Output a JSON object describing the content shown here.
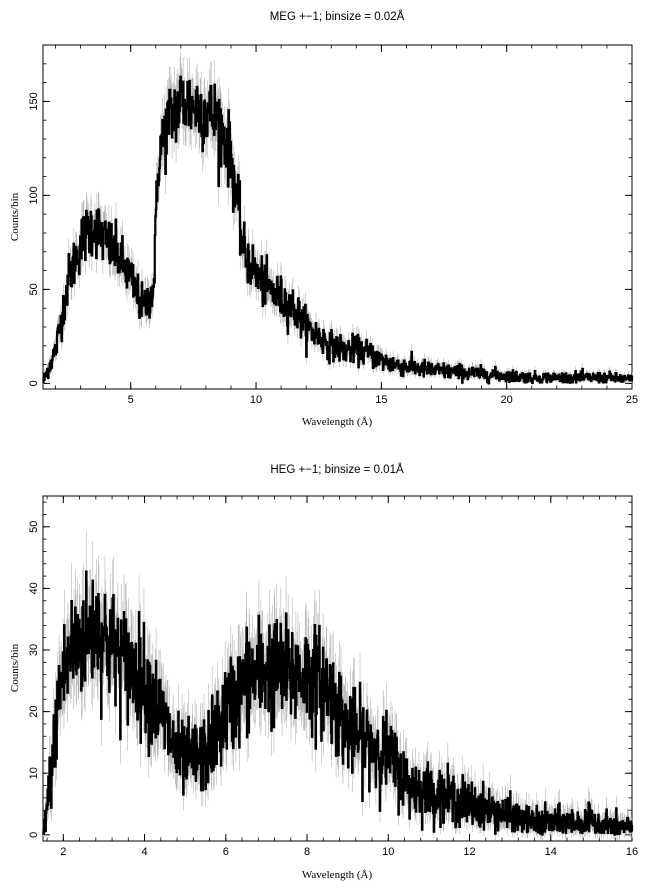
{
  "chart_data": [
    {
      "type": "line",
      "title": "MEG +−1; binsize = 0.02Å",
      "xlabel": "Wavelength (Å)",
      "ylabel": "Counts/bin",
      "xlim": [
        1.5,
        25
      ],
      "ylim": [
        -3,
        180
      ],
      "xticks": [
        5,
        10,
        15,
        20,
        25
      ],
      "yticks": [
        0,
        50,
        100,
        150
      ],
      "grid": false,
      "series": [
        {
          "style": "histogram-with-errorbars",
          "x": [
            1.5,
            2.0,
            2.5,
            3.0,
            3.5,
            4.0,
            4.5,
            5.0,
            5.5,
            5.9,
            6.1,
            6.5,
            7.0,
            7.5,
            8.0,
            8.5,
            9.0,
            9.5,
            10.0,
            10.5,
            11.0,
            11.5,
            12.0,
            12.5,
            13.0,
            13.5,
            14.0,
            14.5,
            15.0,
            15.5,
            16.0,
            17.0,
            18.0,
            19.0,
            20.0,
            21.0,
            22.0,
            23.0,
            24.0,
            25.0
          ],
          "y": [
            1,
            18,
            55,
            75,
            85,
            75,
            68,
            55,
            40,
            50,
            120,
            140,
            150,
            148,
            145,
            140,
            120,
            70,
            58,
            50,
            45,
            40,
            30,
            25,
            20,
            18,
            18,
            16,
            12,
            10,
            9,
            7,
            6,
            5,
            4,
            3,
            3,
            3,
            3,
            2
          ]
        }
      ]
    },
    {
      "type": "line",
      "title": "HEG +−1; binsize = 0.01Å",
      "xlabel": "Wavelength (Å)",
      "ylabel": "Counts/bin",
      "xlim": [
        1.5,
        16
      ],
      "ylim": [
        -1,
        55
      ],
      "xticks": [
        2,
        4,
        6,
        8,
        10,
        12,
        14,
        16
      ],
      "yticks": [
        0,
        10,
        20,
        30,
        40,
        50
      ],
      "grid": false,
      "series": [
        {
          "style": "histogram-with-errorbars",
          "x": [
            1.5,
            1.7,
            1.9,
            2.2,
            2.5,
            2.8,
            3.0,
            3.5,
            4.0,
            4.5,
            4.8,
            5.0,
            5.5,
            6.0,
            6.5,
            7.0,
            7.5,
            8.0,
            8.5,
            9.0,
            9.5,
            10.0,
            10.5,
            11.0,
            11.5,
            12.0,
            12.5,
            13.0,
            13.5,
            14.0,
            15.0,
            16.0
          ],
          "y": [
            0,
            10,
            24,
            30,
            32,
            34,
            32,
            28,
            25,
            18,
            13,
            12,
            13,
            20,
            25,
            27,
            26,
            26,
            24,
            17,
            15,
            13,
            8,
            7,
            6,
            5,
            4,
            3,
            2,
            2,
            2,
            1
          ]
        }
      ]
    }
  ]
}
